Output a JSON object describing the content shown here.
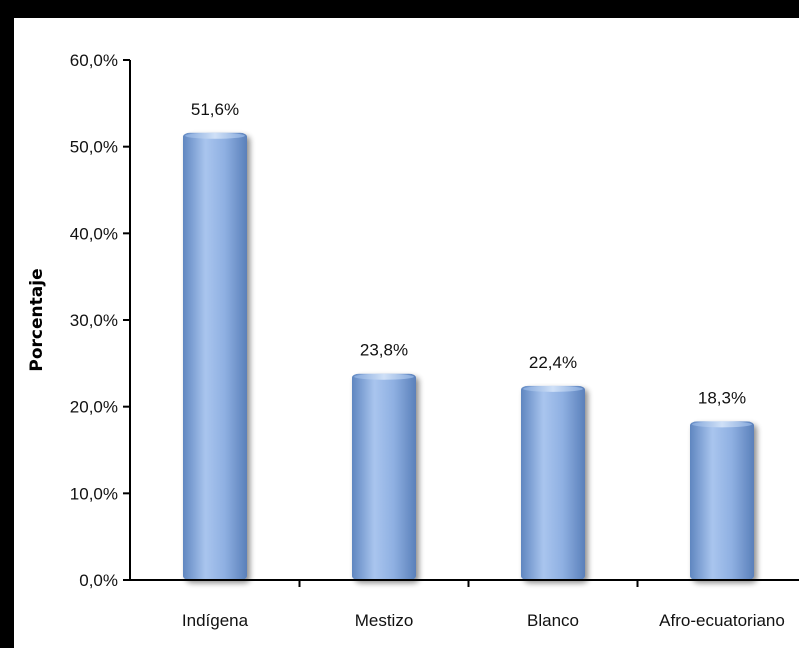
{
  "chart_data": {
    "type": "bar",
    "title": "",
    "xlabel": "",
    "ylabel": "Porcentaje",
    "categories": [
      "Indígena",
      "Mestizo",
      "Blanco",
      "Afro-ecuatoriano"
    ],
    "values": [
      51.6,
      23.8,
      22.4,
      18.3
    ],
    "value_labels": [
      "51,6%",
      "23,8%",
      "22,4%",
      "18,3%"
    ],
    "ylim": [
      0,
      60
    ],
    "yticks": [
      0,
      10,
      20,
      30,
      40,
      50,
      60
    ],
    "ytick_labels": [
      "0,0%",
      "10,0%",
      "20,0%",
      "30,0%",
      "40,0%",
      "50,0%",
      "60,0%"
    ],
    "grid": false,
    "legend": "none",
    "bar_color": "#7fa6d9"
  }
}
